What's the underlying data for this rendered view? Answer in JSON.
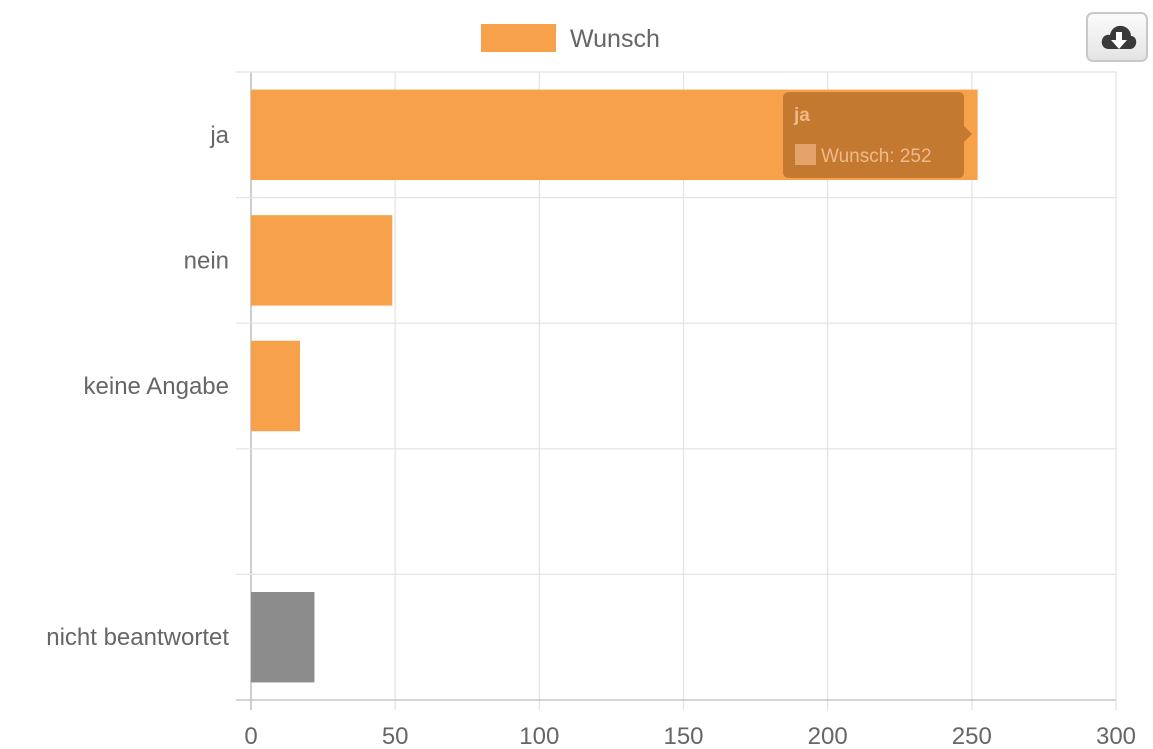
{
  "chart_data": {
    "type": "bar",
    "orientation": "horizontal",
    "categories": [
      "ja",
      "nein",
      "keine Angabe",
      "",
      "nicht beantwortet"
    ],
    "series": [
      {
        "name": "Wunsch",
        "values": [
          252,
          49,
          17,
          null,
          22
        ]
      }
    ],
    "bar_colors": [
      "#f7a14a",
      "#f7a14a",
      "#f7a14a",
      null,
      "#8c8c8c"
    ],
    "series_color": "#f7a14a",
    "xlim": [
      0,
      300
    ],
    "xticks": [
      "0",
      "50",
      "100",
      "150",
      "200",
      "250",
      "300"
    ],
    "grid": true,
    "legend": {
      "position": "top",
      "label": "Wunsch"
    },
    "tooltip": {
      "title": "ja",
      "label": "Wunsch: 252"
    }
  },
  "toolbar": {
    "download_icon": "cloud-download-icon"
  }
}
